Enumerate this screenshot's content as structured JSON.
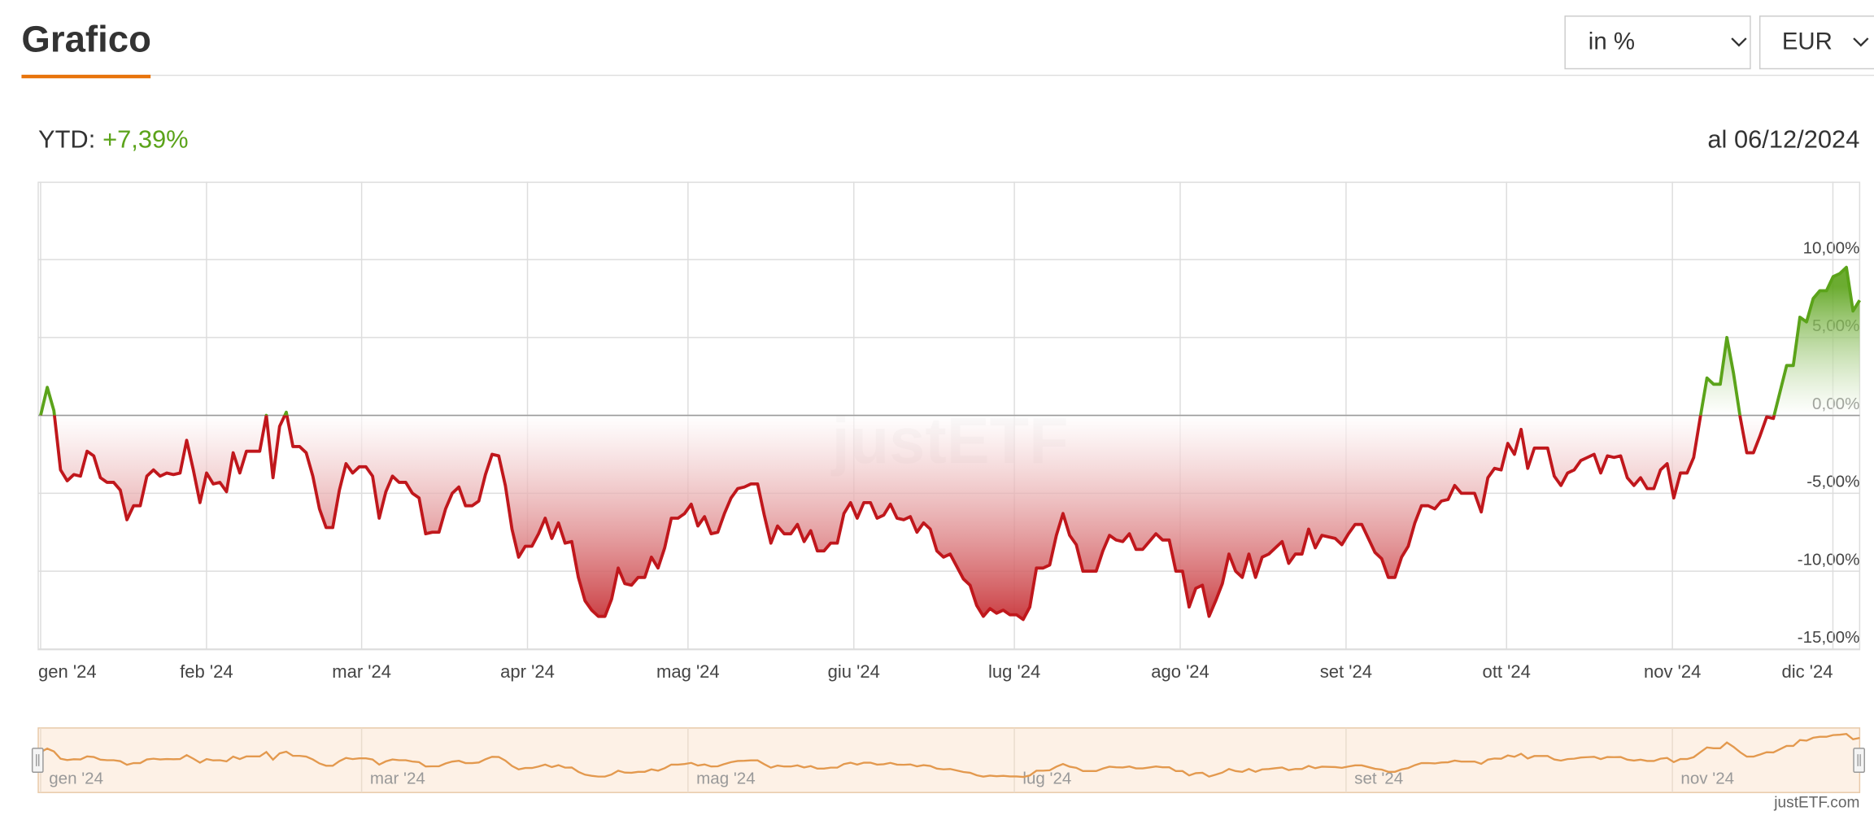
{
  "header": {
    "title": "Grafico",
    "selects": [
      "in %",
      "EUR"
    ]
  },
  "summary": {
    "label": "YTD:",
    "value": "+7,39%",
    "date": "al 06/12/2024"
  },
  "watermark": "justETF",
  "credit": "justETF.com",
  "chart_data": {
    "type": "area",
    "positive_color": "#5ba31a",
    "negative_color": "#c0171c",
    "xlim": [
      "2024-01-01",
      "2024-12-06"
    ],
    "xticks": [
      {
        "value": "2024-01",
        "label": "gen '24"
      },
      {
        "value": "2024-02",
        "label": "feb '24"
      },
      {
        "value": "2024-03",
        "label": "mar '24"
      },
      {
        "value": "2024-04",
        "label": "apr '24"
      },
      {
        "value": "2024-05",
        "label": "mag '24"
      },
      {
        "value": "2024-06",
        "label": "giu '24"
      },
      {
        "value": "2024-07",
        "label": "lug '24"
      },
      {
        "value": "2024-08",
        "label": "ago '24"
      },
      {
        "value": "2024-09",
        "label": "set '24"
      },
      {
        "value": "2024-10",
        "label": "ott '24"
      },
      {
        "value": "2024-11",
        "label": "nov '24"
      },
      {
        "value": "2024-12",
        "label": "dic '24"
      }
    ],
    "ylim": [
      -15,
      15
    ],
    "yticks": [
      {
        "value": 10,
        "label": "10,00%"
      },
      {
        "value": 5,
        "label": "5,00%"
      },
      {
        "value": 0,
        "label": "0,00%"
      },
      {
        "value": -5,
        "label": "-5,00%"
      },
      {
        "value": -10,
        "label": "-10,00%"
      },
      {
        "value": -15,
        "label": "-15,00%"
      }
    ],
    "grid": true,
    "values": [
      0,
      1.8,
      0.3,
      -3.5,
      -4.2,
      -3.8,
      -3.9,
      -2.3,
      -2.6,
      -4.0,
      -4.3,
      -4.3,
      -4.8,
      -6.7,
      -5.8,
      -5.8,
      -3.9,
      -3.5,
      -3.9,
      -3.7,
      -3.8,
      -3.7,
      -1.6,
      -3.5,
      -5.6,
      -3.7,
      -4.4,
      -4.3,
      -4.9,
      -2.4,
      -3.7,
      -2.3,
      -2.3,
      -2.3,
      0.0,
      -4.0,
      -0.7,
      0.2,
      -2.0,
      -2.0,
      -2.4,
      -3.9,
      -6.0,
      -7.2,
      -7.2,
      -4.8,
      -3.1,
      -3.7,
      -3.3,
      -3.3,
      -3.9,
      -6.6,
      -4.9,
      -3.9,
      -4.3,
      -4.3,
      -5.0,
      -5.3,
      -7.6,
      -7.5,
      -7.5,
      -6.0,
      -5.0,
      -4.6,
      -5.8,
      -5.8,
      -5.5,
      -3.8,
      -2.5,
      -2.6,
      -4.5,
      -7.3,
      -9.1,
      -8.4,
      -8.4,
      -7.6,
      -6.6,
      -7.9,
      -6.9,
      -8.2,
      -8.1,
      -10.4,
      -11.9,
      -12.5,
      -12.9,
      -12.9,
      -11.8,
      -9.8,
      -10.8,
      -10.9,
      -10.4,
      -10.4,
      -9.1,
      -9.8,
      -8.5,
      -6.6,
      -6.6,
      -6.3,
      -5.7,
      -7.1,
      -6.5,
      -7.6,
      -7.5,
      -6.3,
      -5.3,
      -4.7,
      -4.6,
      -4.4,
      -4.4,
      -6.4,
      -8.2,
      -7.1,
      -7.6,
      -7.6,
      -7.0,
      -8.1,
      -7.4,
      -8.7,
      -8.7,
      -8.2,
      -8.2,
      -6.3,
      -5.6,
      -6.6,
      -5.6,
      -5.6,
      -6.6,
      -6.4,
      -5.7,
      -6.6,
      -6.7,
      -6.5,
      -7.5,
      -6.9,
      -7.3,
      -8.7,
      -9.1,
      -8.9,
      -9.7,
      -10.5,
      -10.9,
      -12.2,
      -12.9,
      -12.4,
      -12.7,
      -12.5,
      -12.8,
      -12.8,
      -13.1,
      -12.3,
      -9.8,
      -9.8,
      -9.6,
      -7.7,
      -6.3,
      -7.7,
      -8.3,
      -10.0,
      -10.0,
      -10.0,
      -8.7,
      -7.7,
      -8.0,
      -8.1,
      -7.6,
      -8.6,
      -8.6,
      -8.1,
      -7.6,
      -8.0,
      -8.0,
      -10.0,
      -10.0,
      -12.3,
      -11.1,
      -10.9,
      -12.9,
      -11.9,
      -10.8,
      -8.9,
      -10.0,
      -10.4,
      -8.9,
      -10.4,
      -9.1,
      -8.9,
      -8.5,
      -8.1,
      -9.5,
      -8.9,
      -8.9,
      -7.3,
      -8.5,
      -7.7,
      -7.8,
      -7.9,
      -8.3,
      -7.6,
      -7.0,
      -7.0,
      -7.9,
      -8.8,
      -9.2,
      -10.4,
      -10.4,
      -9.1,
      -8.4,
      -6.9,
      -5.8,
      -5.8,
      -6.0,
      -5.5,
      -5.4,
      -4.5,
      -5.0,
      -5.0,
      -5.0,
      -6.2,
      -4.0,
      -3.4,
      -3.5,
      -1.8,
      -2.5,
      -0.9,
      -3.4,
      -2.1,
      -2.1,
      -2.1,
      -3.9,
      -4.5,
      -3.7,
      -3.5,
      -2.9,
      -2.7,
      -2.5,
      -3.7,
      -2.6,
      -2.7,
      -2.6,
      -4.0,
      -4.5,
      -4.0,
      -4.7,
      -4.7,
      -3.5,
      -3.1,
      -5.3,
      -3.7,
      -3.7,
      -2.7,
      -0.1,
      2.4,
      2.0,
      2.0,
      5.0,
      2.7,
      -0.1,
      -2.4,
      -2.4,
      -1.3,
      -0.1,
      -0.2,
      1.5,
      3.2,
      3.2,
      6.3,
      6.0,
      7.5,
      8.0,
      8.0,
      8.9,
      9.1,
      9.5,
      6.7,
      7.39
    ]
  },
  "navigator": {
    "color": "#e3994e",
    "background": "#fdf1e6",
    "xticks": [
      {
        "value": "2024-01",
        "label": "gen '24"
      },
      {
        "value": "2024-03",
        "label": "mar '24"
      },
      {
        "value": "2024-05",
        "label": "mag '24"
      },
      {
        "value": "2024-07",
        "label": "lug '24"
      },
      {
        "value": "2024-09",
        "label": "set '24"
      },
      {
        "value": "2024-11",
        "label": "nov '24"
      }
    ]
  }
}
